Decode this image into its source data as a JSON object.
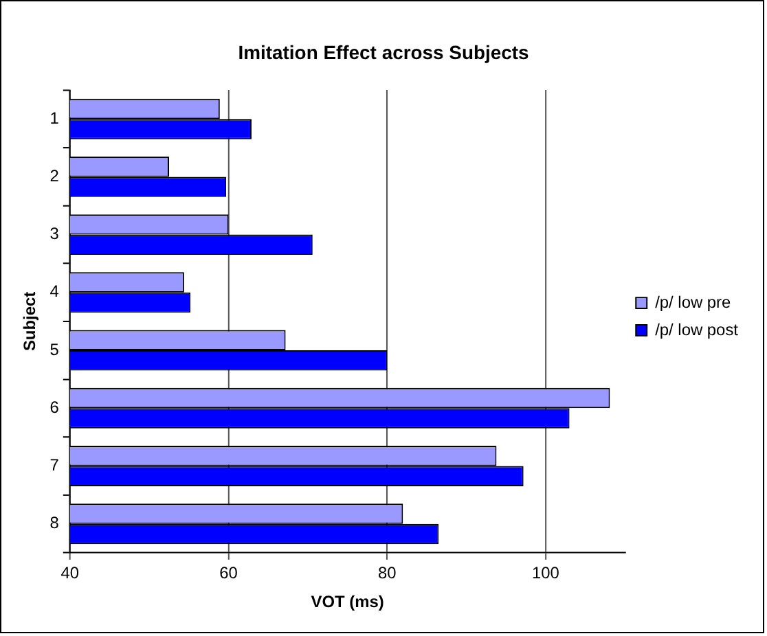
{
  "chart_data": {
    "type": "bar",
    "orientation": "horizontal",
    "title": "Imitation Effect across Subjects",
    "xlabel": "VOT (ms)",
    "ylabel": "Subject",
    "categories": [
      "1",
      "2",
      "3",
      "4",
      "5",
      "6",
      "7",
      "8"
    ],
    "series": [
      {
        "name": "/p/ low pre",
        "color": "#9999ff",
        "values": [
          58.9,
          52.5,
          60,
          54.4,
          67.2,
          108.1,
          93.8,
          82
        ]
      },
      {
        "name": "/p/ low post",
        "color": "#0000ff",
        "values": [
          62.9,
          59.7,
          70.6,
          55.2,
          80,
          103,
          97.2,
          86.5
        ]
      }
    ],
    "xlim": [
      40,
      110
    ],
    "xticks": [
      40,
      60,
      80,
      100
    ],
    "grid": "x",
    "legend": "right"
  }
}
